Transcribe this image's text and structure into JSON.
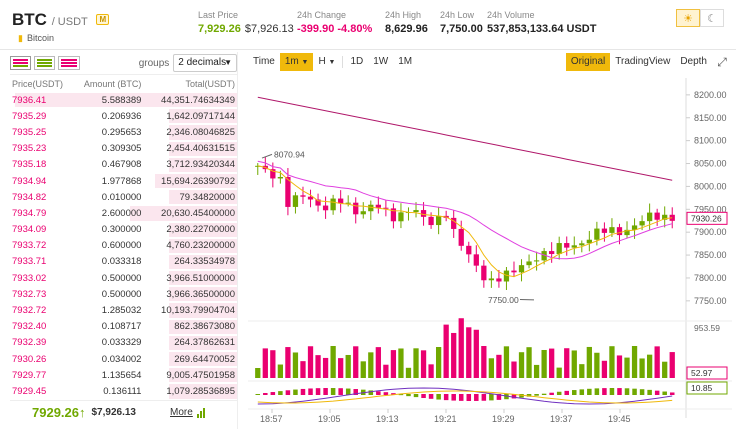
{
  "header": {
    "base": "BTC",
    "quote": "/ USDT",
    "badge": "M",
    "coin_name": "Bitcoin",
    "stats": [
      {
        "label": "Last Price",
        "value": "7,929.26",
        "sub": "$7,926.13"
      },
      {
        "label": "24h Change",
        "value": "-399.90",
        "sub": "-4.80%"
      },
      {
        "label": "24h High",
        "value": "8,629.96"
      },
      {
        "label": "24h Low",
        "value": "7,750.00"
      },
      {
        "label": "24h Volume",
        "value": "537,853,133.64 USDT"
      }
    ],
    "theme": {
      "light_icon": "sun-icon",
      "dark_icon": "moon-icon"
    }
  },
  "orderbook": {
    "groups_label": "groups",
    "groups_value": "2 decimals",
    "columns": [
      "Price(USDT)",
      "Amount (BTC)",
      "Total(USDT)"
    ],
    "rows": [
      {
        "price": "7936.41",
        "amount": "5.588389",
        "total": "44,351.74634349",
        "depth": 0.98
      },
      {
        "price": "7935.29",
        "amount": "0.206936",
        "total": "1,642.09717144",
        "depth": 0.04
      },
      {
        "price": "7935.25",
        "amount": "0.295653",
        "total": "2,346.08046825",
        "depth": 0.05
      },
      {
        "price": "7935.23",
        "amount": "0.309305",
        "total": "2,454.40631515",
        "depth": 0.05
      },
      {
        "price": "7935.18",
        "amount": "0.467908",
        "total": "3,712.93420344",
        "depth": 0.08
      },
      {
        "price": "7934.94",
        "amount": "1.977868",
        "total": "15,694.26390792",
        "depth": 0.36
      },
      {
        "price": "7934.82",
        "amount": "0.010000",
        "total": "79.34820000",
        "depth": 0.0
      },
      {
        "price": "7934.79",
        "amount": "2.600000",
        "total": "20,630.45400000",
        "depth": 0.47
      },
      {
        "price": "7934.09",
        "amount": "0.300000",
        "total": "2,380.22700000",
        "depth": 0.05
      },
      {
        "price": "7933.72",
        "amount": "0.600000",
        "total": "4,760.23200000",
        "depth": 0.11
      },
      {
        "price": "7933.71",
        "amount": "0.033318",
        "total": "264.33534978",
        "depth": 0.0
      },
      {
        "price": "7933.02",
        "amount": "0.500000",
        "total": "3,966.51000000",
        "depth": 0.09
      },
      {
        "price": "7932.73",
        "amount": "0.500000",
        "total": "3,966.36500000",
        "depth": 0.09
      },
      {
        "price": "7932.72",
        "amount": "1.285032",
        "total": "10,193.79904704",
        "depth": 0.23
      },
      {
        "price": "7932.40",
        "amount": "0.108717",
        "total": "862.38673080",
        "depth": 0.02
      },
      {
        "price": "7932.39",
        "amount": "0.033329",
        "total": "264.37862631",
        "depth": 0.0
      },
      {
        "price": "7930.26",
        "amount": "0.034002",
        "total": "269.64470052",
        "depth": 0.0
      },
      {
        "price": "7929.77",
        "amount": "1.135654",
        "total": "9,005.47501958",
        "depth": 0.2
      },
      {
        "price": "7929.45",
        "amount": "0.136111",
        "total": "1,079.28536895",
        "depth": 0.02
      }
    ],
    "last_price": "7929.26",
    "last_arrow": "↑",
    "last_usd": "$7,926.13",
    "more": "More"
  },
  "toolbar": {
    "intervals": [
      "Time",
      "1m",
      "H",
      "1D",
      "1W",
      "1M"
    ],
    "active_interval": "1m",
    "views": [
      "Original",
      "TradingView",
      "Depth"
    ],
    "active_view": "Original"
  },
  "chart_data": {
    "type": "candlestick",
    "y_ticks": [
      "8200.00",
      "8150.00",
      "8100.00",
      "8050.00",
      "8000.00",
      "7950.00",
      "7900.00",
      "7850.00",
      "7800.00",
      "7750.00"
    ],
    "ylim": [
      7730,
      8215
    ],
    "x_ticks": [
      "18:57",
      "19:05",
      "19:13",
      "19:21",
      "19:29",
      "19:37",
      "19:45"
    ],
    "annotations": {
      "high_label": "8070.94",
      "low_label": "7750.00",
      "last_tag": "7930.26"
    },
    "volume_max_label": "953.59",
    "volume_tag": "52.97",
    "macd_tag": "10.85",
    "colors": {
      "up": "#70a800",
      "down": "#ea0070",
      "ma_slow": "#b0176a",
      "ma_mid": "#e040e0",
      "ma_fast": "#f0b90b",
      "macd_line": "#7030c0"
    }
  }
}
